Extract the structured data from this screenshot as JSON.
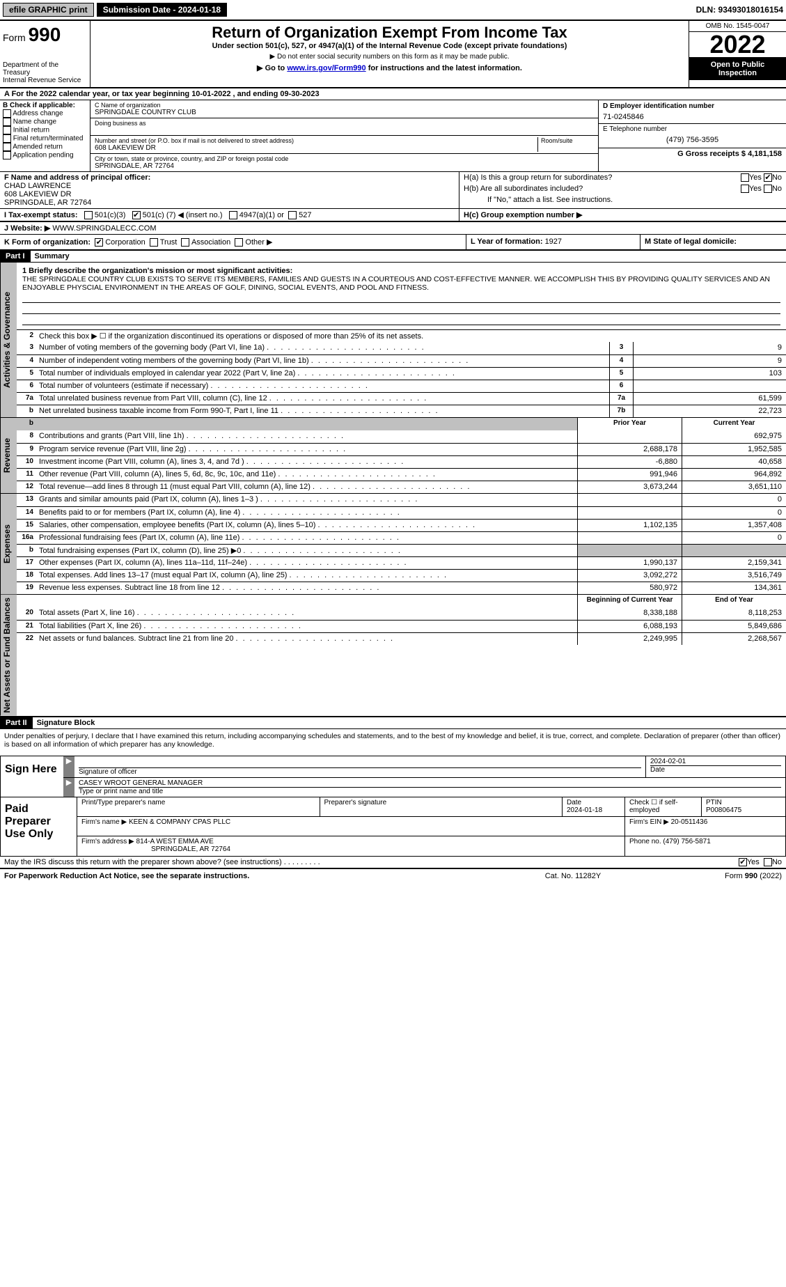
{
  "topbar": {
    "efile": "efile GRAPHIC print",
    "submission_label": "Submission Date - 2024-01-18",
    "dln": "DLN: 93493018016154"
  },
  "header": {
    "form_prefix": "Form",
    "form_number": "990",
    "dept1": "Department of the Treasury",
    "dept2": "Internal Revenue Service",
    "title": "Return of Organization Exempt From Income Tax",
    "subtitle1": "Under section 501(c), 527, or 4947(a)(1) of the Internal Revenue Code (except private foundations)",
    "subtitle2": "▶ Do not enter social security numbers on this form as it may be made public.",
    "subtitle3_pre": "▶ Go to ",
    "subtitle3_link": "www.irs.gov/Form990",
    "subtitle3_post": " for instructions and the latest information.",
    "omb": "OMB No. 1545-0047",
    "year": "2022",
    "open": "Open to Public Inspection"
  },
  "row_a": "A For the 2022 calendar year, or tax year beginning 10-01-2022    , and ending 09-30-2023",
  "box_b": {
    "header": "B Check if applicable:",
    "items": [
      "Address change",
      "Name change",
      "Initial return",
      "Final return/terminated",
      "Amended return",
      "Application pending"
    ]
  },
  "box_c": {
    "label_name": "C Name of organization",
    "org_name": "SPRINGDALE COUNTRY CLUB",
    "dba_label": "Doing business as",
    "addr_label": "Number and street (or P.O. box if mail is not delivered to street address)",
    "room_label": "Room/suite",
    "addr": "608 LAKEVIEW DR",
    "city_label": "City or town, state or province, country, and ZIP or foreign postal code",
    "city": "SPRINGDALE, AR  72764"
  },
  "box_d": {
    "ein_label": "D Employer identification number",
    "ein": "71-0245846",
    "phone_label": "E Telephone number",
    "phone": "(479) 756-3595",
    "gross_label": "G Gross receipts $ ",
    "gross": "4,181,158"
  },
  "box_f": {
    "label": "F  Name and address of principal officer:",
    "name": "CHAD LAWRENCE",
    "addr1": "608 LAKEVIEW DR",
    "addr2": "SPRINGDALE, AR  72764"
  },
  "box_h": {
    "ha": "H(a)  Is this a group return for subordinates?",
    "hb": "H(b)  Are all subordinates included?",
    "hb_note": "If \"No,\" attach a list. See instructions.",
    "hc": "H(c)  Group exemption number ▶"
  },
  "box_i": {
    "label": "I  Tax-exempt status:",
    "opt1": "501(c)(3)",
    "opt2_pre": "501(c) (",
    "opt2_num": "7",
    "opt2_post": ") ◀ (insert no.)",
    "opt3": "4947(a)(1) or",
    "opt4": "527"
  },
  "box_j": {
    "label": "J  Website: ▶ ",
    "value": "WWW.SPRINGDALECC.COM"
  },
  "box_k": {
    "label": "K Form of organization:",
    "opts": [
      "Corporation",
      "Trust",
      "Association",
      "Other ▶"
    ],
    "l_label": "L Year of formation: ",
    "l_val": "1927",
    "m_label": "M State of legal domicile:"
  },
  "part1": {
    "header": "Part I",
    "title": "Summary",
    "mission_label": "1  Briefly describe the organization's mission or most significant activities:",
    "mission": "THE SPRINGDALE COUNTRY CLUB EXISTS TO SERVE ITS MEMBERS, FAMILIES AND GUESTS IN A COURTEOUS AND COST-EFFECTIVE MANNER. WE ACCOMPLISH THIS BY PROVIDING QUALITY SERVICES AND AN ENJOYABLE PHYSCIAL ENVIRONMENT IN THE AREAS OF GOLF, DINING, SOCIAL EVENTS, AND POOL AND FITNESS.",
    "line2": "Check this box ▶ ☐  if the organization discontinued its operations or disposed of more than 25% of its net assets.",
    "sidelabels": {
      "gov": "Activities & Governance",
      "rev": "Revenue",
      "exp": "Expenses",
      "net": "Net Assets or Fund Balances"
    },
    "col_prior": "Prior Year",
    "col_current": "Current Year",
    "col_begin": "Beginning of Current Year",
    "col_end": "End of Year",
    "gov_rows": [
      {
        "n": "3",
        "d": "Number of voting members of the governing body (Part VI, line 1a)",
        "box": "3",
        "v": "9"
      },
      {
        "n": "4",
        "d": "Number of independent voting members of the governing body (Part VI, line 1b)",
        "box": "4",
        "v": "9"
      },
      {
        "n": "5",
        "d": "Total number of individuals employed in calendar year 2022 (Part V, line 2a)",
        "box": "5",
        "v": "103"
      },
      {
        "n": "6",
        "d": "Total number of volunteers (estimate if necessary)",
        "box": "6",
        "v": ""
      },
      {
        "n": "7a",
        "d": "Total unrelated business revenue from Part VIII, column (C), line 12",
        "box": "7a",
        "v": "61,599"
      },
      {
        "n": "b",
        "d": "Net unrelated business taxable income from Form 990-T, Part I, line 11",
        "box": "7b",
        "v": "22,723"
      }
    ],
    "rev_rows": [
      {
        "n": "8",
        "d": "Contributions and grants (Part VIII, line 1h)",
        "p": "",
        "c": "692,975"
      },
      {
        "n": "9",
        "d": "Program service revenue (Part VIII, line 2g)",
        "p": "2,688,178",
        "c": "1,952,585"
      },
      {
        "n": "10",
        "d": "Investment income (Part VIII, column (A), lines 3, 4, and 7d )",
        "p": "-6,880",
        "c": "40,658"
      },
      {
        "n": "11",
        "d": "Other revenue (Part VIII, column (A), lines 5, 6d, 8c, 9c, 10c, and 11e)",
        "p": "991,946",
        "c": "964,892"
      },
      {
        "n": "12",
        "d": "Total revenue—add lines 8 through 11 (must equal Part VIII, column (A), line 12)",
        "p": "3,673,244",
        "c": "3,651,110"
      }
    ],
    "exp_rows": [
      {
        "n": "13",
        "d": "Grants and similar amounts paid (Part IX, column (A), lines 1–3 )",
        "p": "",
        "c": "0"
      },
      {
        "n": "14",
        "d": "Benefits paid to or for members (Part IX, column (A), line 4)",
        "p": "",
        "c": "0"
      },
      {
        "n": "15",
        "d": "Salaries, other compensation, employee benefits (Part IX, column (A), lines 5–10)",
        "p": "1,102,135",
        "c": "1,357,408"
      },
      {
        "n": "16a",
        "d": "Professional fundraising fees (Part IX, column (A), line 11e)",
        "p": "",
        "c": "0"
      },
      {
        "n": "b",
        "d": "Total fundraising expenses (Part IX, column (D), line 25) ▶0",
        "p": "grey",
        "c": "grey"
      },
      {
        "n": "17",
        "d": "Other expenses (Part IX, column (A), lines 11a–11d, 11f–24e)",
        "p": "1,990,137",
        "c": "2,159,341"
      },
      {
        "n": "18",
        "d": "Total expenses. Add lines 13–17 (must equal Part IX, column (A), line 25)",
        "p": "3,092,272",
        "c": "3,516,749"
      },
      {
        "n": "19",
        "d": "Revenue less expenses. Subtract line 18 from line 12",
        "p": "580,972",
        "c": "134,361"
      }
    ],
    "net_rows": [
      {
        "n": "20",
        "d": "Total assets (Part X, line 16)",
        "p": "8,338,188",
        "c": "8,118,253"
      },
      {
        "n": "21",
        "d": "Total liabilities (Part X, line 26)",
        "p": "6,088,193",
        "c": "5,849,686"
      },
      {
        "n": "22",
        "d": "Net assets or fund balances. Subtract line 21 from line 20",
        "p": "2,249,995",
        "c": "2,268,567"
      }
    ]
  },
  "part2": {
    "header": "Part II",
    "title": "Signature Block",
    "penalty": "Under penalties of perjury, I declare that I have examined this return, including accompanying schedules and statements, and to the best of my knowledge and belief, it is true, correct, and complete. Declaration of preparer (other than officer) is based on all information of which preparer has any knowledge.",
    "sign_here": "Sign Here",
    "sig_officer": "Signature of officer",
    "sig_date_val": "2024-02-01",
    "sig_date": "Date",
    "officer_name": "CASEY WROOT  GENERAL MANAGER",
    "type_name": "Type or print name and title",
    "paid": "Paid Preparer Use Only",
    "prep_name_label": "Print/Type preparer's name",
    "prep_sig_label": "Preparer's signature",
    "prep_date_label": "Date",
    "prep_date_val": "2024-01-18",
    "prep_check": "Check ☐ if self-employed",
    "ptin_label": "PTIN",
    "ptin": "P00806475",
    "firm_name_label": "Firm's name    ▶ ",
    "firm_name": "KEEN & COMPANY CPAS PLLC",
    "firm_ein_label": "Firm's EIN ▶ ",
    "firm_ein": "20-0511436",
    "firm_addr_label": "Firm's address ▶ ",
    "firm_addr1": "814-A WEST EMMA AVE",
    "firm_addr2": "SPRINGDALE, AR  72764",
    "firm_phone_label": "Phone no. ",
    "firm_phone": "(479) 756-5871",
    "discuss": "May the IRS discuss this return with the preparer shown above? (see instructions)",
    "yes": "Yes",
    "no": "No"
  },
  "footer": {
    "left": "For Paperwork Reduction Act Notice, see the separate instructions.",
    "mid": "Cat. No. 11282Y",
    "right_pre": "Form ",
    "right_form": "990",
    "right_post": " (2022)"
  }
}
